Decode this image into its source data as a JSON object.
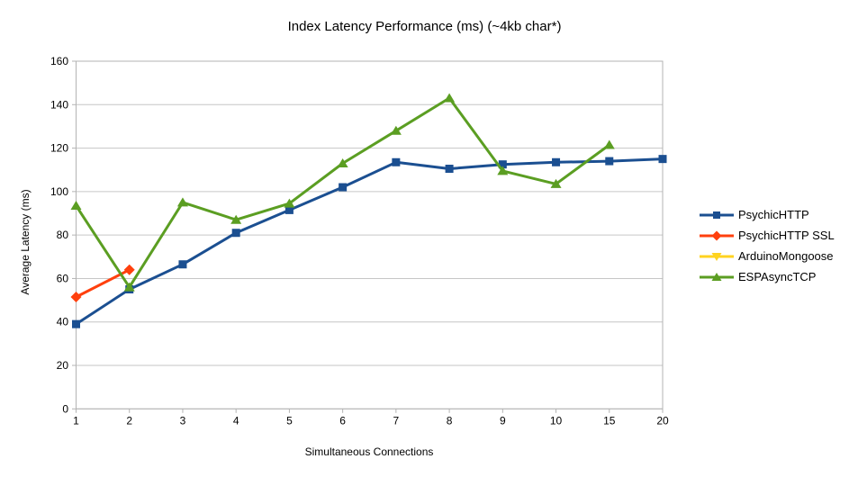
{
  "title": "Index Latency Performance (ms) (~4kb char*)",
  "chart_data": {
    "type": "line",
    "title": "Index Latency Performance (ms) (~4kb char*)",
    "xlabel": "Simultaneous Connections",
    "ylabel": "Average Latency (ms)",
    "categories": [
      "1",
      "2",
      "3",
      "4",
      "5",
      "6",
      "7",
      "8",
      "9",
      "10",
      "15",
      "20"
    ],
    "ylim": [
      0,
      160
    ],
    "ytick_step": 20,
    "grid": "horizontal-only",
    "legend_position": "right",
    "series": [
      {
        "name": "PsychicHTTP",
        "color": "#1b4f91",
        "marker": "square",
        "values": [
          39,
          55,
          66.5,
          81,
          91.5,
          102,
          113.5,
          110.5,
          112.5,
          113.5,
          114,
          115
        ]
      },
      {
        "name": "PsychicHTTP SSL",
        "color": "#ff400e",
        "marker": "diamond",
        "values": [
          51.5,
          64,
          null,
          null,
          null,
          null,
          null,
          null,
          null,
          null,
          null,
          null
        ]
      },
      {
        "name": "ArduinoMongoose",
        "color": "#ffd320",
        "marker": "triangle-down",
        "values": [
          null,
          null,
          null,
          null,
          null,
          null,
          null,
          null,
          null,
          null,
          null,
          null
        ]
      },
      {
        "name": "ESPAsyncTCP",
        "color": "#5b9e22",
        "marker": "triangle-up",
        "values": [
          93.5,
          56,
          95,
          87,
          94.5,
          113,
          128,
          143,
          109.5,
          103.5,
          121.5,
          null
        ]
      }
    ]
  },
  "colors": {
    "grid": "#c6c6c6",
    "axis": "#b3b3b3",
    "text": "#000000",
    "background": "#ffffff"
  }
}
